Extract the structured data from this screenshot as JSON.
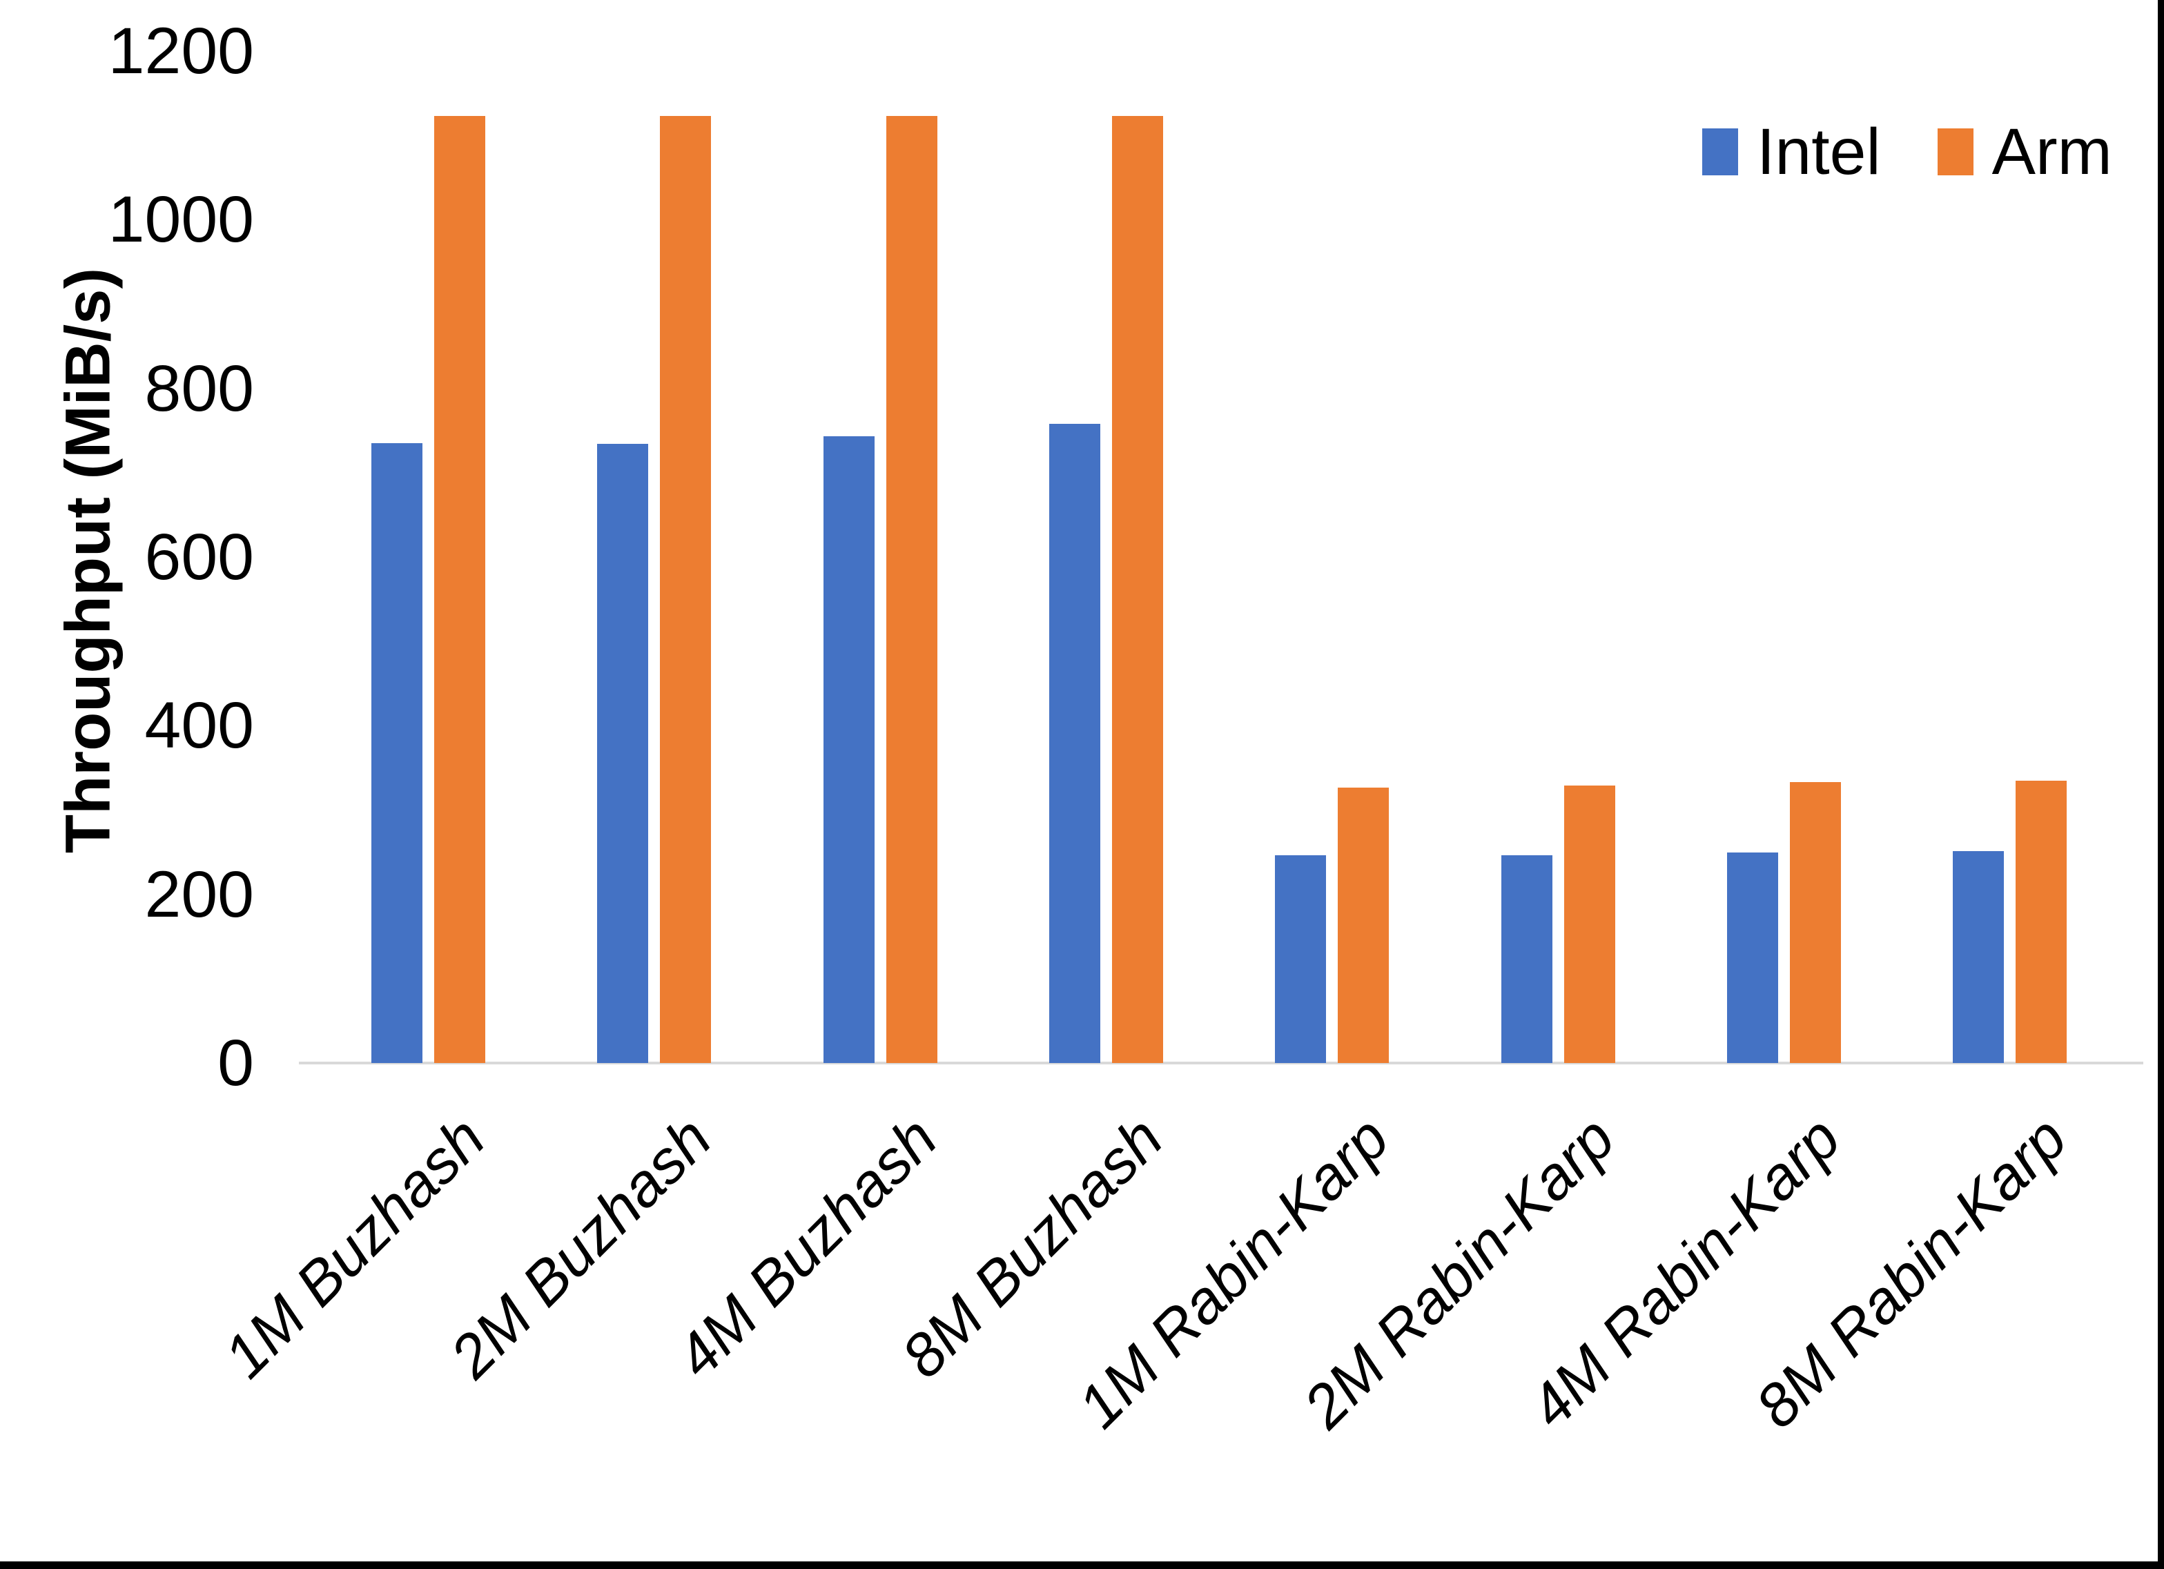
{
  "chart_data": {
    "type": "bar",
    "categories": [
      "1M Buzhash",
      "2M Buzhash",
      "4M Buzhash",
      "8M Buzhash",
      "1M Rabin-Karp",
      "2M Rabin-Karp",
      "4M Rabin-Karp",
      "8M Rabin-Karp"
    ],
    "series": [
      {
        "name": "Intel",
        "color": "#4472C4",
        "values": [
          735,
          734,
          743,
          758,
          246,
          246,
          250,
          251
        ]
      },
      {
        "name": "Arm",
        "color": "#ED7D31",
        "values": [
          1123,
          1123,
          1123,
          1123,
          327,
          329,
          333,
          335
        ]
      }
    ],
    "title": "",
    "xlabel": "",
    "ylabel": "Throughput (MiB/s)",
    "ylim": [
      0,
      1200
    ],
    "yticks": [
      0,
      200,
      400,
      600,
      800,
      1000,
      1200
    ],
    "grid": false,
    "legend_position": "top-right",
    "axis_line_color": "#D9D9D9",
    "text_color": "#000000",
    "background_color": "#FFFFFF",
    "frame_edge_color": "#000000"
  }
}
